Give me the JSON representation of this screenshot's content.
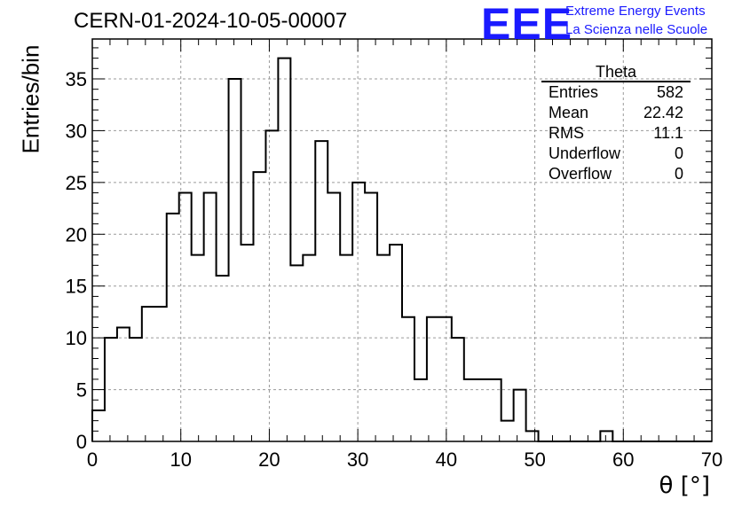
{
  "header": {
    "run_title": "CERN-01-2024-10-05-00007",
    "logo_text": "EEE",
    "logo_line1": "Extreme Energy Events",
    "logo_line2": "La Scienza nelle Scuole",
    "logo_color": "#1a1aff"
  },
  "stats_box": {
    "title": "Theta",
    "rows": [
      {
        "label": "Entries",
        "value": "582"
      },
      {
        "label": "Mean",
        "value": "22.42"
      },
      {
        "label": "RMS",
        "value": "11.1"
      },
      {
        "label": "Underflow",
        "value": "0"
      },
      {
        "label": "Overflow",
        "value": "0"
      }
    ]
  },
  "chart_data": {
    "type": "bar",
    "xlabel": "θ [°]",
    "ylabel": "Entries/bin",
    "xlim": [
      0,
      70
    ],
    "ylim": [
      0,
      38.85
    ],
    "xticks": [
      0,
      10,
      20,
      30,
      40,
      50,
      60,
      70
    ],
    "yticks": [
      0,
      5,
      10,
      15,
      20,
      25,
      30,
      35
    ],
    "grid": true,
    "bin_width": 1.4,
    "bin_edges_start": 0,
    "values": [
      3,
      10,
      11,
      10,
      13,
      13,
      22,
      24,
      18,
      24,
      16,
      35,
      19,
      26,
      30,
      37,
      17,
      18,
      29,
      24,
      18,
      25,
      24,
      18,
      19,
      12,
      6,
      12,
      12,
      10,
      6,
      6,
      6,
      2,
      5,
      1,
      0,
      0,
      0,
      0,
      0,
      1,
      0,
      0,
      0,
      0,
      0,
      0,
      0,
      0
    ]
  }
}
